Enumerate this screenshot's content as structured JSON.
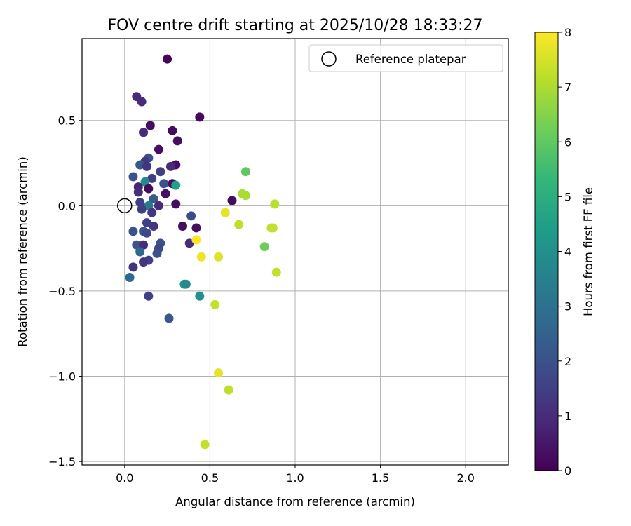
{
  "chart_data": {
    "type": "scatter",
    "title": "FOV centre drift starting at 2025/10/28 18:33:27",
    "xlabel": "Angular distance from reference (arcmin)",
    "ylabel": "Rotation from reference (arcmin)",
    "xlim": [
      -0.25,
      2.25
    ],
    "ylim": [
      -1.52,
      0.98
    ],
    "xticks": [
      0.0,
      0.5,
      1.0,
      1.5,
      2.0
    ],
    "xtick_labels": [
      "0.0",
      "0.5",
      "1.0",
      "1.5",
      "2.0"
    ],
    "yticks": [
      -1.5,
      -1.0,
      -0.5,
      0.0,
      0.5
    ],
    "ytick_labels": [
      "−1.5",
      "−1.0",
      "−0.5",
      "0.0",
      "0.5"
    ],
    "grid": true,
    "legend": {
      "position": "top-right",
      "entries": [
        "Reference platepar"
      ]
    },
    "reference_point": {
      "x": 0.0,
      "y": 0.0
    },
    "colorbar": {
      "label": "Hours from first FF file",
      "min": 0,
      "max": 8,
      "ticks": [
        0,
        1,
        2,
        3,
        4,
        5,
        6,
        7,
        8
      ],
      "tick_labels": [
        "0",
        "1",
        "2",
        "3",
        "4",
        "5",
        "6",
        "7",
        "8"
      ],
      "colormap": "viridis"
    },
    "points": [
      {
        "x": 0.25,
        "y": 0.86,
        "c": 0.1
      },
      {
        "x": 0.07,
        "y": 0.64,
        "c": 1.0
      },
      {
        "x": 0.1,
        "y": 0.61,
        "c": 1.0
      },
      {
        "x": 0.44,
        "y": 0.52,
        "c": 0.2
      },
      {
        "x": 0.15,
        "y": 0.47,
        "c": 0.3
      },
      {
        "x": 0.11,
        "y": 0.43,
        "c": 1.0
      },
      {
        "x": 0.28,
        "y": 0.44,
        "c": 0.2
      },
      {
        "x": 0.31,
        "y": 0.38,
        "c": 0.3
      },
      {
        "x": 0.2,
        "y": 0.33,
        "c": 0.3
      },
      {
        "x": 0.14,
        "y": 0.28,
        "c": 2.0
      },
      {
        "x": 0.12,
        "y": 0.26,
        "c": 1.3
      },
      {
        "x": 0.09,
        "y": 0.24,
        "c": 2.2
      },
      {
        "x": 0.13,
        "y": 0.23,
        "c": 1.2
      },
      {
        "x": 0.3,
        "y": 0.24,
        "c": 0.3
      },
      {
        "x": 0.27,
        "y": 0.23,
        "c": 1.0
      },
      {
        "x": 0.21,
        "y": 0.2,
        "c": 1.5
      },
      {
        "x": 0.05,
        "y": 0.17,
        "c": 2.0
      },
      {
        "x": 0.16,
        "y": 0.16,
        "c": 1.5
      },
      {
        "x": 0.12,
        "y": 0.14,
        "c": 3.8
      },
      {
        "x": 0.23,
        "y": 0.13,
        "c": 2.0
      },
      {
        "x": 0.28,
        "y": 0.13,
        "c": 0.3
      },
      {
        "x": 0.3,
        "y": 0.12,
        "c": 4.5
      },
      {
        "x": 0.08,
        "y": 0.11,
        "c": 0.8
      },
      {
        "x": 0.08,
        "y": 0.08,
        "c": 1.0
      },
      {
        "x": 0.14,
        "y": 0.1,
        "c": 0.2
      },
      {
        "x": 0.24,
        "y": 0.07,
        "c": 0.3
      },
      {
        "x": 0.17,
        "y": 0.04,
        "c": 2.3
      },
      {
        "x": 0.09,
        "y": 0.02,
        "c": 1.5
      },
      {
        "x": 0.14,
        "y": 0.0,
        "c": 3.2
      },
      {
        "x": 0.2,
        "y": 0.0,
        "c": 1.0
      },
      {
        "x": 0.3,
        "y": 0.01,
        "c": 0.3
      },
      {
        "x": 0.1,
        "y": -0.02,
        "c": 1.5
      },
      {
        "x": 0.16,
        "y": -0.04,
        "c": 1.3
      },
      {
        "x": 0.63,
        "y": 0.03,
        "c": 0.2
      },
      {
        "x": 0.39,
        "y": -0.06,
        "c": 1.8
      },
      {
        "x": 0.13,
        "y": -0.1,
        "c": 1.5
      },
      {
        "x": 0.17,
        "y": -0.12,
        "c": 1.3
      },
      {
        "x": 0.34,
        "y": -0.12,
        "c": 0.3
      },
      {
        "x": 0.42,
        "y": -0.13,
        "c": 0.3
      },
      {
        "x": 0.05,
        "y": -0.15,
        "c": 2.0
      },
      {
        "x": 0.11,
        "y": -0.15,
        "c": 2.0
      },
      {
        "x": 0.13,
        "y": -0.16,
        "c": 1.7
      },
      {
        "x": 0.38,
        "y": -0.22,
        "c": 1.0
      },
      {
        "x": 0.07,
        "y": -0.23,
        "c": 2.0
      },
      {
        "x": 0.21,
        "y": -0.22,
        "c": 2.0
      },
      {
        "x": 0.11,
        "y": -0.23,
        "c": 1.0
      },
      {
        "x": 0.09,
        "y": -0.27,
        "c": 2.7
      },
      {
        "x": 0.2,
        "y": -0.25,
        "c": 1.7
      },
      {
        "x": 0.19,
        "y": -0.28,
        "c": 2.0
      },
      {
        "x": 0.14,
        "y": -0.32,
        "c": 1.5
      },
      {
        "x": 0.11,
        "y": -0.33,
        "c": 1.2
      },
      {
        "x": 0.05,
        "y": -0.36,
        "c": 1.2
      },
      {
        "x": 0.03,
        "y": -0.42,
        "c": 2.7
      },
      {
        "x": 0.35,
        "y": -0.46,
        "c": 4.0
      },
      {
        "x": 0.36,
        "y": -0.46,
        "c": 3.8
      },
      {
        "x": 0.14,
        "y": -0.53,
        "c": 1.5
      },
      {
        "x": 0.44,
        "y": -0.53,
        "c": 4.0
      },
      {
        "x": 0.26,
        "y": -0.66,
        "c": 2.2
      },
      {
        "x": 0.71,
        "y": 0.2,
        "c": 6.0
      },
      {
        "x": 0.69,
        "y": 0.07,
        "c": 7.0
      },
      {
        "x": 0.71,
        "y": 0.06,
        "c": 7.0
      },
      {
        "x": 0.88,
        "y": 0.01,
        "c": 7.2
      },
      {
        "x": 0.59,
        "y": -0.04,
        "c": 7.7
      },
      {
        "x": 0.67,
        "y": -0.11,
        "c": 7.2
      },
      {
        "x": 0.86,
        "y": -0.13,
        "c": 7.2
      },
      {
        "x": 0.87,
        "y": -0.13,
        "c": 7.3
      },
      {
        "x": 0.42,
        "y": -0.2,
        "c": 8.0
      },
      {
        "x": 0.82,
        "y": -0.24,
        "c": 6.2
      },
      {
        "x": 0.45,
        "y": -0.3,
        "c": 7.8
      },
      {
        "x": 0.55,
        "y": -0.3,
        "c": 7.6
      },
      {
        "x": 0.89,
        "y": -0.39,
        "c": 7.3
      },
      {
        "x": 0.53,
        "y": -0.58,
        "c": 7.3
      },
      {
        "x": 0.55,
        "y": -0.98,
        "c": 7.7
      },
      {
        "x": 0.61,
        "y": -1.08,
        "c": 7.2
      },
      {
        "x": 0.47,
        "y": -1.4,
        "c": 7.3
      }
    ]
  }
}
